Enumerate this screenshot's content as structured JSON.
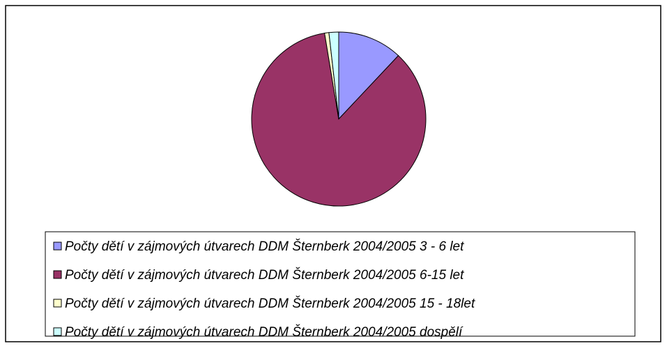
{
  "chart_data": {
    "type": "pie",
    "categories": [
      "Počty dětí v zájmových útvarech DDM Šternberk 2004/2005 3 - 6 let",
      "Počty dětí v zájmových útvarech DDM Šternberk 2004/2005 6-15 let",
      "Počty dětí v zájmových útvarech DDM Šternberk 2004/2005 15 - 18let",
      "Počty dětí v zájmových útvarech DDM Šternberk 2004/2005 dospělí"
    ],
    "values": [
      12,
      85.4,
      0.8,
      1.8
    ],
    "colors": [
      "#9999ff",
      "#993366",
      "#ffffcc",
      "#ccffff"
    ],
    "legend": "bottom"
  }
}
